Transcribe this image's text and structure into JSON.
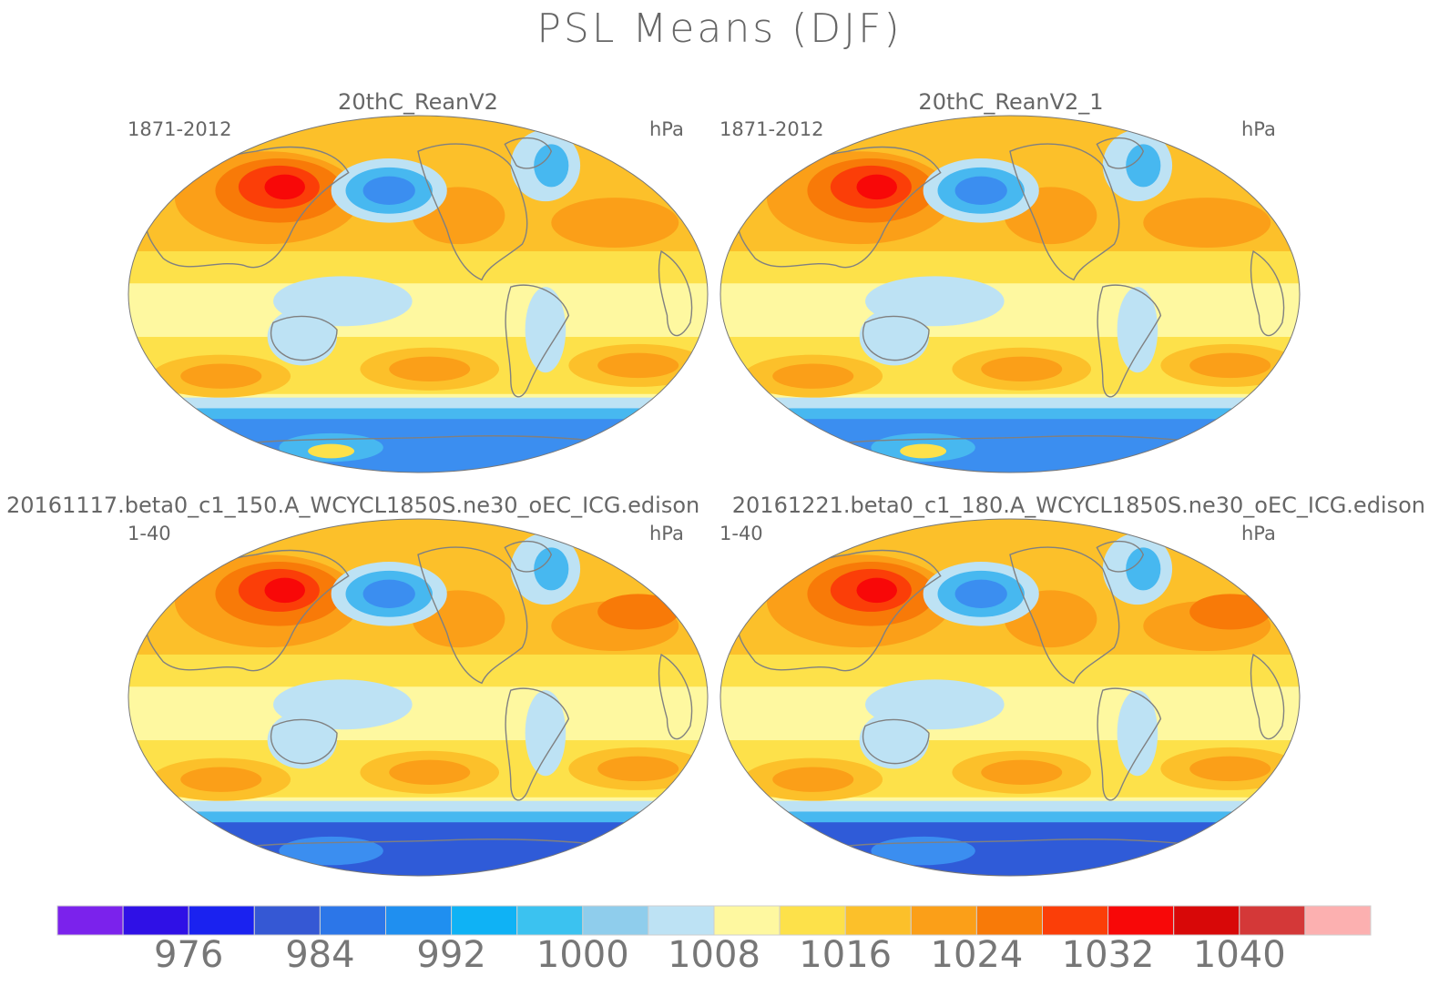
{
  "title": "PSL Means (DJF)",
  "panels": [
    {
      "title": "20thC_ReanV2",
      "left": "1871-2012",
      "right": "hPa"
    },
    {
      "title": "20thC_ReanV2_1",
      "left": "1871-2012",
      "right": "hPa"
    },
    {
      "title": "20161117.beta0_c1_150.A_WCYCL1850S.ne30_oEC_ICG.edison",
      "left": "1-40",
      "right": "hPa"
    },
    {
      "title": "20161221.beta0_c1_180.A_WCYCL1850S.ne30_oEC_ICG.edison",
      "left": "1-40",
      "right": "hPa"
    }
  ],
  "colorbar": {
    "colors": [
      "#7b22ec",
      "#2f10e6",
      "#1a22f0",
      "#3558d4",
      "#2c76e8",
      "#1f8ff0",
      "#0fb2f5",
      "#3bc2f0",
      "#8fcdec",
      "#bde2f4",
      "#fef8a0",
      "#fde14a",
      "#fcc02a",
      "#fb9f18",
      "#f87a08",
      "#fb3e08",
      "#f80808",
      "#d80808",
      "#d43838",
      "#fcb0b0"
    ],
    "labels": [
      "976",
      "984",
      "992",
      "1000",
      "1008",
      "1016",
      "1024",
      "1032",
      "1040"
    ]
  },
  "map_colors": {
    "deep_low": "#2f5bd8",
    "low": "#3b8ef0",
    "mid_low": "#47b8f0",
    "light_blue": "#bde2f4",
    "pale_yellow": "#fef8a0",
    "yellow": "#fde14a",
    "gold": "#fcc02a",
    "orange": "#fb9f18",
    "dark_orange": "#f87a08",
    "red_orange": "#fb3e08",
    "red": "#f80808"
  }
}
